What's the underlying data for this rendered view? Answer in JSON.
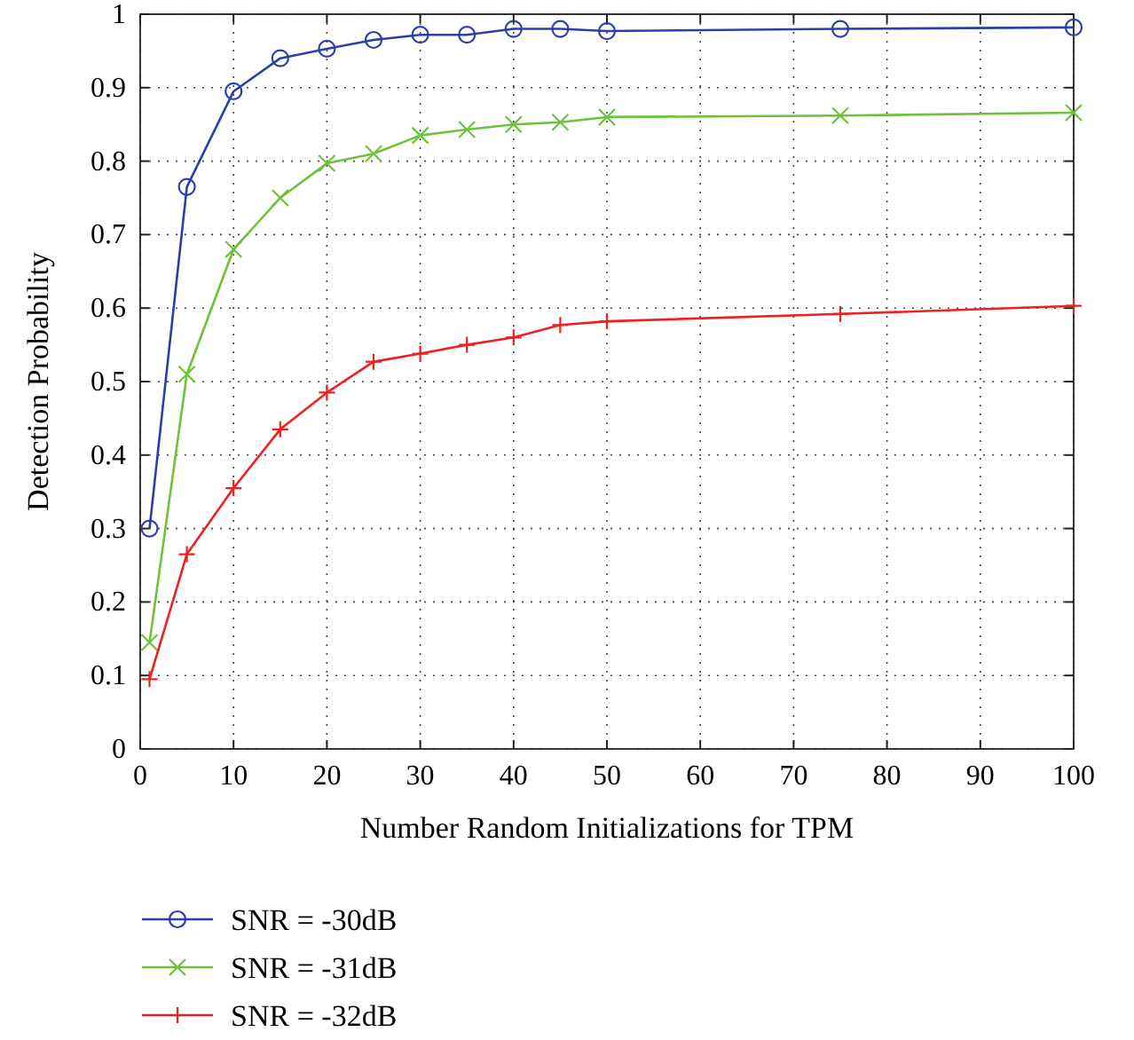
{
  "chart_data": {
    "type": "line",
    "xlabel": "Number Random Initializations for TPM",
    "ylabel": "Detection Probability",
    "x": [
      1,
      5,
      10,
      15,
      20,
      25,
      30,
      35,
      40,
      45,
      50,
      75,
      100
    ],
    "series": [
      {
        "name": "SNR = -30dB",
        "color": "#2b3fa8",
        "marker": "circle",
        "values": [
          0.3,
          0.765,
          0.895,
          0.94,
          0.953,
          0.965,
          0.972,
          0.972,
          0.98,
          0.98,
          0.977,
          0.98,
          0.982
        ]
      },
      {
        "name": "SNR = -31dB",
        "color": "#6cc23a",
        "marker": "x",
        "values": [
          0.145,
          0.51,
          0.68,
          0.75,
          0.797,
          0.81,
          0.835,
          0.843,
          0.85,
          0.853,
          0.86,
          0.862,
          0.866
        ]
      },
      {
        "name": "SNR = -32dB",
        "color": "#ee2020",
        "marker": "cross",
        "values": [
          0.095,
          0.265,
          0.355,
          0.435,
          0.485,
          0.527,
          0.538,
          0.55,
          0.56,
          0.577,
          0.582,
          0.592,
          0.603
        ]
      }
    ],
    "xlim": [
      0,
      100
    ],
    "xticks": [
      0,
      10,
      20,
      30,
      40,
      50,
      60,
      70,
      80,
      90,
      100
    ],
    "ylim": [
      0,
      1
    ],
    "yticks": [
      0,
      0.1,
      0.2,
      0.3,
      0.4,
      0.5,
      0.6,
      0.7,
      0.8,
      0.9,
      1
    ],
    "grid": true,
    "line_style": "solid",
    "legend": "bottom"
  }
}
